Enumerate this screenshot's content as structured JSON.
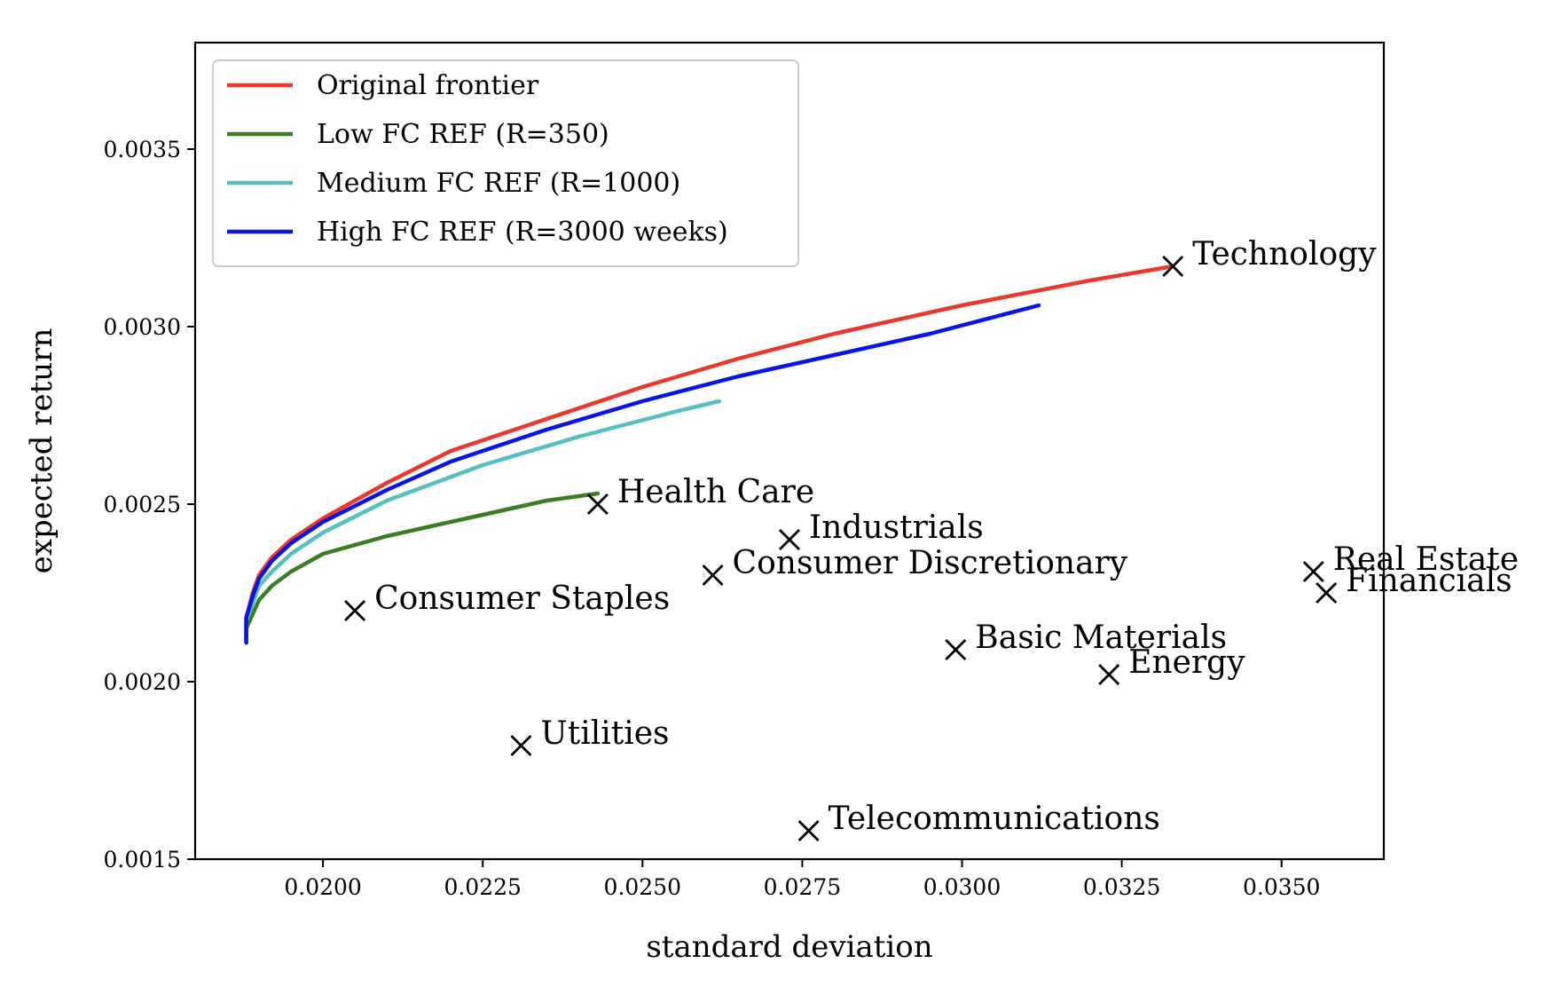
{
  "chart_data": {
    "type": "line",
    "title": "",
    "xlabel": "standard deviation",
    "ylabel": "expected return",
    "xlim": [
      0.018,
      0.0366
    ],
    "ylim": [
      0.0015,
      0.0038
    ],
    "xticks": [
      0.02,
      0.0225,
      0.025,
      0.0275,
      0.03,
      0.0325,
      0.035
    ],
    "xtick_labels": [
      "0.0200",
      "0.0225",
      "0.0250",
      "0.0275",
      "0.0300",
      "0.0325",
      "0.0350"
    ],
    "yticks": [
      0.0015,
      0.002,
      0.0025,
      0.003,
      0.0035
    ],
    "ytick_labels": [
      "0.0015",
      "0.0020",
      "0.0025",
      "0.0030",
      "0.0035"
    ],
    "grid": false,
    "legend_position": "upper-left",
    "series": [
      {
        "name": "Original frontier",
        "color": "#e8392c",
        "x": [
          0.0188,
          0.0188,
          0.0189,
          0.019,
          0.0192,
          0.0195,
          0.02,
          0.021,
          0.022,
          0.0235,
          0.025,
          0.0265,
          0.028,
          0.03,
          0.032,
          0.0333
        ],
        "y": [
          0.00211,
          0.00218,
          0.00225,
          0.0023,
          0.00235,
          0.0024,
          0.00246,
          0.00256,
          0.00265,
          0.00274,
          0.00283,
          0.00291,
          0.00298,
          0.00306,
          0.00313,
          0.00317
        ]
      },
      {
        "name": "Low FC REF (R=350)",
        "color": "#3a7d22",
        "x": [
          0.0188,
          0.0188,
          0.0189,
          0.019,
          0.0192,
          0.0195,
          0.02,
          0.021,
          0.0225,
          0.0235,
          0.0243
        ],
        "y": [
          0.00211,
          0.00215,
          0.00219,
          0.00223,
          0.00227,
          0.00231,
          0.00236,
          0.00241,
          0.00247,
          0.00251,
          0.00253
        ]
      },
      {
        "name": "Medium FC REF (R=1000)",
        "color": "#56bfc2",
        "x": [
          0.0188,
          0.0188,
          0.0189,
          0.019,
          0.0192,
          0.0195,
          0.02,
          0.021,
          0.0225,
          0.024,
          0.0255,
          0.0262
        ],
        "y": [
          0.00211,
          0.00217,
          0.00222,
          0.00227,
          0.00231,
          0.00236,
          0.00242,
          0.00251,
          0.00261,
          0.00269,
          0.00276,
          0.00279
        ]
      },
      {
        "name": "High FC REF (R=3000 weeks)",
        "color": "#0a14e8",
        "x": [
          0.0188,
          0.0188,
          0.0189,
          0.019,
          0.0192,
          0.0195,
          0.02,
          0.021,
          0.022,
          0.0235,
          0.025,
          0.0265,
          0.028,
          0.0295,
          0.0312
        ],
        "y": [
          0.00211,
          0.00218,
          0.00224,
          0.00229,
          0.00234,
          0.00239,
          0.00245,
          0.00254,
          0.00262,
          0.00271,
          0.00279,
          0.00286,
          0.00292,
          0.00298,
          0.00306
        ]
      }
    ],
    "points": [
      {
        "label": "Technology",
        "x": 0.0333,
        "y": 0.00317
      },
      {
        "label": "Health Care",
        "x": 0.0243,
        "y": 0.0025
      },
      {
        "label": "Industrials",
        "x": 0.0273,
        "y": 0.0024
      },
      {
        "label": "Consumer Discretionary",
        "x": 0.0261,
        "y": 0.0023
      },
      {
        "label": "Real Estate",
        "x": 0.0355,
        "y": 0.00231
      },
      {
        "label": "Financials",
        "x": 0.0357,
        "y": 0.00225
      },
      {
        "label": "Consumer Staples",
        "x": 0.0205,
        "y": 0.0022
      },
      {
        "label": "Basic Materials",
        "x": 0.0299,
        "y": 0.00209
      },
      {
        "label": "Energy",
        "x": 0.0323,
        "y": 0.00202
      },
      {
        "label": "Utilities",
        "x": 0.0231,
        "y": 0.00182
      },
      {
        "label": "Telecommunications",
        "x": 0.0276,
        "y": 0.00158
      }
    ],
    "point_marker": "x",
    "point_color": "#000000"
  }
}
